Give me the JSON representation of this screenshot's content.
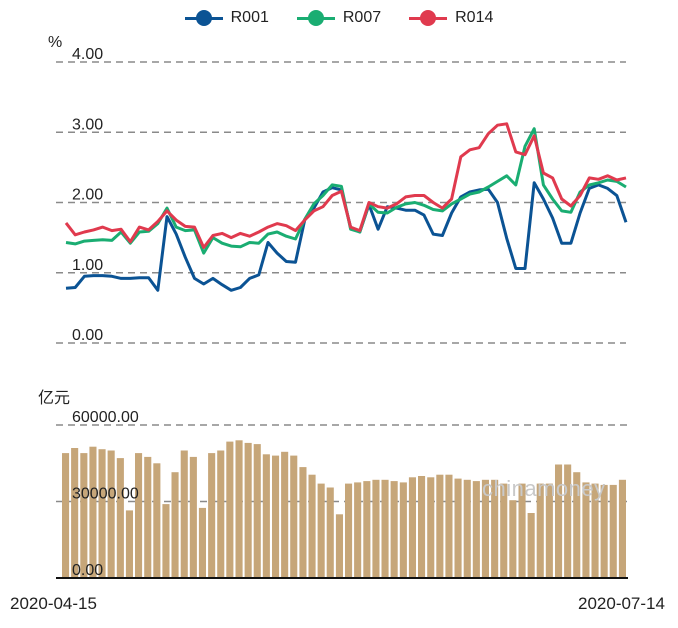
{
  "chart_data": [
    {
      "type": "line",
      "unit_label": "%",
      "ylim": [
        0,
        4
      ],
      "yticks": [
        "0.00",
        "1.00",
        "2.00",
        "3.00",
        "4.00"
      ],
      "grid": true,
      "legend_position": "top-center",
      "series": [
        {
          "name": "R001",
          "color": "#0b5394",
          "values": [
            0.78,
            0.79,
            0.95,
            0.96,
            0.96,
            0.95,
            0.92,
            0.92,
            0.93,
            0.93,
            0.75,
            1.8,
            1.55,
            1.22,
            0.92,
            0.84,
            0.92,
            0.83,
            0.75,
            0.79,
            0.92,
            0.97,
            1.43,
            1.28,
            1.16,
            1.15,
            1.75,
            1.92,
            2.15,
            2.21,
            2.18,
            1.65,
            1.58,
            1.97,
            1.62,
            1.94,
            1.92,
            1.89,
            1.89,
            1.82,
            1.55,
            1.53,
            1.85,
            2.08,
            2.15,
            2.18,
            2.19,
            2.0,
            1.49,
            1.06,
            1.06,
            2.28,
            2.05,
            1.78,
            1.42,
            1.42,
            1.85,
            2.2,
            2.25,
            2.2,
            2.1,
            1.72
          ]
        },
        {
          "name": "R007",
          "color": "#1aad72",
          "values": [
            1.43,
            1.41,
            1.45,
            1.46,
            1.47,
            1.46,
            1.58,
            1.42,
            1.58,
            1.59,
            1.7,
            1.92,
            1.65,
            1.6,
            1.61,
            1.28,
            1.5,
            1.42,
            1.38,
            1.37,
            1.43,
            1.42,
            1.55,
            1.58,
            1.52,
            1.48,
            1.76,
            1.98,
            2.1,
            2.25,
            2.23,
            1.62,
            1.58,
            1.98,
            1.86,
            1.85,
            1.93,
            1.98,
            2.0,
            1.96,
            1.9,
            1.88,
            1.98,
            2.05,
            2.12,
            2.15,
            2.22,
            2.3,
            2.38,
            2.25,
            2.8,
            3.05,
            2.25,
            2.05,
            1.88,
            1.86,
            2.15,
            2.25,
            2.28,
            2.32,
            2.3,
            2.22
          ]
        },
        {
          "name": "R014",
          "color": "#e03a4e",
          "values": [
            1.71,
            1.54,
            1.58,
            1.61,
            1.65,
            1.6,
            1.62,
            1.44,
            1.65,
            1.61,
            1.73,
            1.88,
            1.75,
            1.66,
            1.65,
            1.36,
            1.53,
            1.56,
            1.5,
            1.56,
            1.52,
            1.58,
            1.65,
            1.7,
            1.67,
            1.6,
            1.75,
            1.88,
            1.94,
            2.1,
            2.16,
            1.65,
            1.6,
            2.0,
            1.94,
            1.92,
            1.98,
            2.08,
            2.1,
            2.1,
            2.0,
            1.92,
            2.05,
            2.65,
            2.75,
            2.78,
            2.98,
            3.1,
            3.12,
            2.72,
            2.68,
            2.95,
            2.42,
            2.35,
            2.05,
            1.95,
            2.1,
            2.35,
            2.33,
            2.38,
            2.32,
            2.35
          ]
        }
      ]
    },
    {
      "type": "bar",
      "unit_label": "亿元",
      "ylim": [
        0,
        60000
      ],
      "yticks": [
        "0.00",
        "30000.00",
        "60000.00"
      ],
      "grid": true,
      "color": "#c6a679",
      "x_start": "2020-04-15",
      "x_end": "2020-07-14",
      "values": [
        49000,
        51000,
        49000,
        51500,
        50500,
        50000,
        47000,
        26500,
        49000,
        47500,
        45000,
        29000,
        41500,
        50000,
        47500,
        27500,
        49000,
        50000,
        53500,
        54000,
        53000,
        52500,
        48500,
        48000,
        49500,
        48000,
        43500,
        40500,
        37000,
        35500,
        25000,
        37000,
        37500,
        38000,
        38500,
        38500,
        38000,
        37500,
        39500,
        40000,
        39500,
        40500,
        40500,
        39000,
        38500,
        38000,
        38500,
        38500,
        37000,
        30500,
        37000,
        25500,
        37000,
        37000,
        44500,
        44500,
        41500,
        37500,
        37000,
        36500,
        36500,
        38500
      ]
    }
  ],
  "legend": [
    {
      "name": "R001",
      "color": "#0b5394"
    },
    {
      "name": "R007",
      "color": "#1aad72"
    },
    {
      "name": "R014",
      "color": "#e03a4e"
    }
  ],
  "top_unit": "%",
  "bottom_unit": "亿元",
  "x_start_label": "2020-04-15",
  "x_end_label": "2020-07-14",
  "watermark": "chinamoney"
}
